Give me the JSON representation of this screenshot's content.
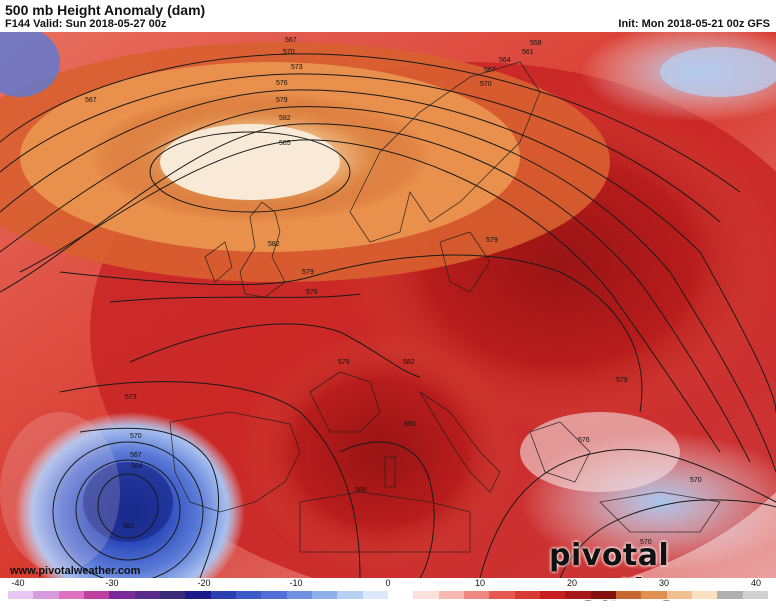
{
  "header": {
    "title": "500 mb Height Anomaly (dam)",
    "valid": "F144 Valid: Sun 2018-05-27 00z",
    "init": "Init: Mon 2018-05-21 00z GFS"
  },
  "footer": {
    "credit": "www.pivotalweather.com",
    "brand": "pivotal weather"
  },
  "colorbar": {
    "ticks": [
      "-40",
      "-30",
      "-20",
      "-10",
      "0",
      "10",
      "20",
      "30",
      "40"
    ],
    "colors": [
      "#e8c8f0",
      "#d89ae0",
      "#e070c0",
      "#c040a0",
      "#7a2a9a",
      "#5a2a8a",
      "#3a2a7a",
      "#1a1a8a",
      "#2a40b0",
      "#3a5ac8",
      "#5070d8",
      "#7090e0",
      "#90b0ec",
      "#b8d0f4",
      "#dce8fa",
      "#ffffff",
      "#fbe0dc",
      "#f6b8b0",
      "#ee8880",
      "#e45a52",
      "#d83a34",
      "#c82020",
      "#a81818",
      "#861010",
      "#c86830",
      "#e09050",
      "#f0c090",
      "#f8e0c0",
      "#b0b0b0",
      "#d0d0d0"
    ]
  },
  "contour_labels": [
    "591",
    "588",
    "585",
    "582",
    "579",
    "576",
    "573",
    "570",
    "567",
    "564",
    "561",
    "558"
  ]
}
